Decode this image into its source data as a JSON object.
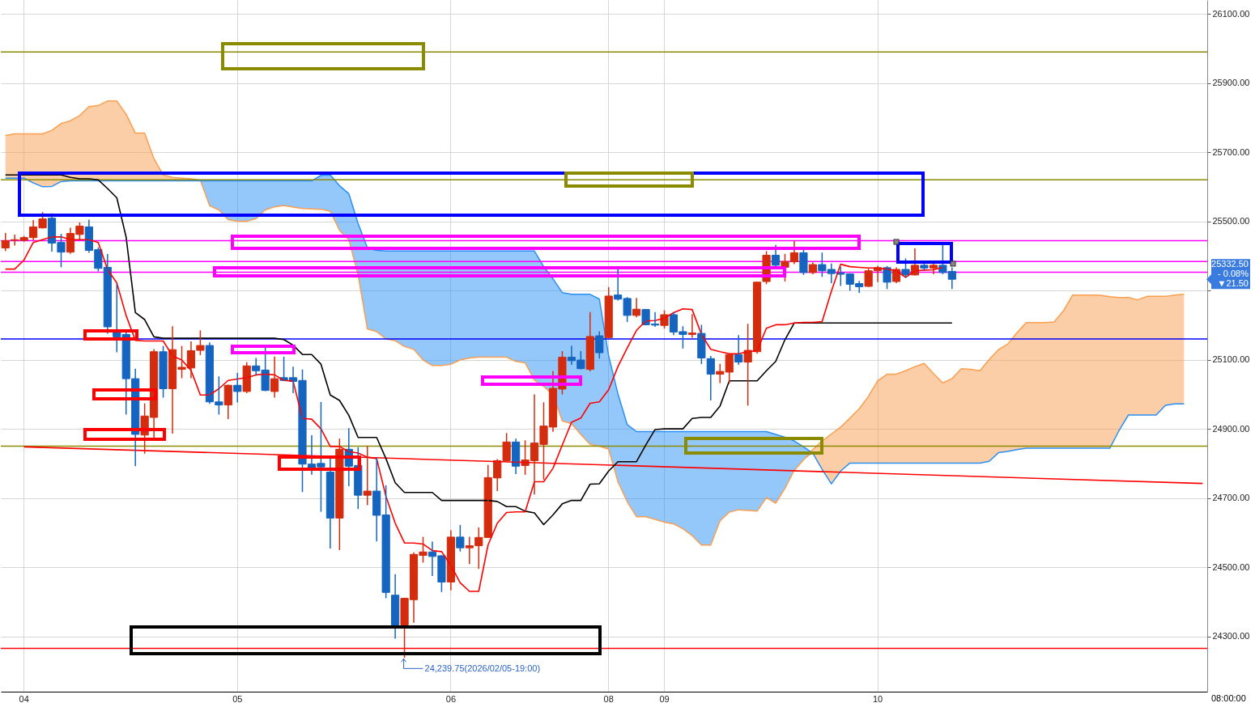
{
  "chart_data": {
    "type": "candlestick",
    "categories": [
      null,
      null,
      "04",
      null,
      null,
      null,
      null,
      null,
      null,
      null,
      null,
      null,
      null,
      null,
      null,
      null,
      null,
      null,
      null,
      null,
      null,
      null,
      null,
      null,
      null,
      "05",
      null,
      null,
      null,
      null,
      null,
      null,
      null,
      null,
      null,
      null,
      null,
      null,
      null,
      null,
      null,
      null,
      null,
      null,
      null,
      null,
      null,
      null,
      "06",
      null,
      null,
      null,
      null,
      null,
      null,
      null,
      null,
      null,
      null,
      null,
      null,
      null,
      null,
      null,
      null,
      "08",
      null,
      null,
      null,
      null,
      null,
      "09",
      null,
      null,
      null,
      null,
      null,
      null,
      null,
      null,
      null,
      null,
      null,
      null,
      null,
      null,
      null,
      null,
      null,
      null,
      null,
      null,
      null,
      null,
      "10",
      null,
      null,
      null,
      null,
      null,
      null,
      null,
      null,
      null,
      null,
      null,
      null,
      null,
      null,
      null,
      null,
      null,
      null,
      null,
      null,
      null,
      null,
      null,
      null,
      null,
      null,
      null,
      null,
      null,
      null,
      null,
      null,
      null,
      null,
      null
    ],
    "ohlc": [
      [
        25423,
        25465,
        25416,
        25444
      ],
      [
        25445,
        25460,
        25432,
        25447
      ],
      [
        25445,
        25456,
        25443,
        25453
      ],
      [
        25453,
        25502,
        25447,
        25484
      ],
      [
        25481,
        25525,
        25481,
        25507
      ],
      [
        25509,
        25521,
        25414,
        25437
      ],
      [
        25439,
        25462,
        25369,
        25411
      ],
      [
        25411,
        25480,
        25408,
        25465
      ],
      [
        25462,
        25495,
        25448,
        25486
      ],
      [
        25484,
        25503,
        25411,
        25416
      ],
      [
        25418,
        25423,
        25357,
        25364
      ],
      [
        25367,
        25404,
        25177,
        25195
      ],
      [
        25181,
        25318,
        25123,
        25166
      ],
      [
        25173,
        25177,
        24943,
        25045
      ],
      [
        25045,
        25072,
        24794,
        24884
      ],
      [
        24882,
        24972,
        24830,
        24937
      ],
      [
        24933,
        25129,
        24876,
        25123
      ],
      [
        25123,
        25138,
        24992,
        25016
      ],
      [
        25016,
        25195,
        24888,
        25129
      ],
      [
        25072,
        25138,
        25048,
        25078
      ],
      [
        25076,
        25151,
        25048,
        25126
      ],
      [
        25127,
        25183,
        25115,
        25141
      ],
      [
        25141,
        25148,
        24974,
        24978
      ],
      [
        24978,
        25050,
        24943,
        24969
      ],
      [
        24969,
        25026,
        24930,
        25026
      ],
      [
        25026,
        25060,
        24978,
        25008
      ],
      [
        25008,
        25091,
        25005,
        25082
      ],
      [
        25082,
        25103,
        25056,
        25068
      ],
      [
        25070,
        25136,
        25011,
        25011
      ],
      [
        25008,
        25107,
        24992,
        25045
      ],
      [
        25048,
        25107,
        25040,
        25040
      ],
      [
        25048,
        25078,
        25005,
        25037
      ],
      [
        25040,
        25070,
        24719,
        24798
      ],
      [
        24798,
        24880,
        24769,
        24784
      ],
      [
        24800,
        24976,
        24662,
        24790
      ],
      [
        24775,
        24814,
        24556,
        24642
      ],
      [
        24642,
        24870,
        24551,
        24841
      ],
      [
        24841,
        24900,
        24736,
        24792
      ],
      [
        24794,
        24845,
        24670,
        24708
      ],
      [
        24708,
        24849,
        24681,
        24720
      ],
      [
        24720,
        24814,
        24576,
        24650
      ],
      [
        24651,
        24735,
        24412,
        24427
      ],
      [
        24419,
        24478,
        24295,
        24333
      ],
      [
        24333,
        24410,
        24239.75,
        24410
      ],
      [
        24406,
        24541,
        24341,
        24537
      ],
      [
        24534,
        24586,
        24515,
        24544
      ],
      [
        24544,
        24572,
        24476,
        24531
      ],
      [
        24533,
        24533,
        24430,
        24457
      ],
      [
        24457,
        24605,
        24435,
        24587
      ],
      [
        24587,
        24620,
        24547,
        24556
      ],
      [
        24556,
        24586,
        24511,
        24562
      ],
      [
        24562,
        24613,
        24497,
        24586
      ],
      [
        24586,
        24794,
        24586,
        24759
      ],
      [
        24758,
        24811,
        24722,
        24808
      ],
      [
        24808,
        24886,
        24808,
        24862
      ],
      [
        24862,
        24870,
        24771,
        24792
      ],
      [
        24794,
        24865,
        24769,
        24810
      ],
      [
        24808,
        24998,
        24712,
        24859
      ],
      [
        24855,
        24975,
        24755,
        24908
      ],
      [
        24905,
        25066,
        24893,
        25017
      ],
      [
        25015,
        25123,
        25001,
        25107
      ],
      [
        25107,
        25138,
        25087,
        25097
      ],
      [
        25099,
        25123,
        25074,
        25074
      ],
      [
        25072,
        25236,
        25068,
        25167
      ],
      [
        25169,
        25180,
        25105,
        25120
      ],
      [
        25164,
        25308,
        25164,
        25284
      ],
      [
        25287,
        25361,
        25273,
        25275
      ],
      [
        25277,
        25279,
        25211,
        25228
      ],
      [
        25228,
        25277,
        25224,
        25246
      ],
      [
        25245,
        25245,
        25201,
        25201
      ],
      [
        25203,
        25236,
        25197,
        25200
      ],
      [
        25199,
        25241,
        25192,
        25230
      ],
      [
        25230,
        25236,
        25173,
        25180
      ],
      [
        25181,
        25195,
        25134,
        25173
      ],
      [
        25173,
        25230,
        25165,
        25177
      ],
      [
        25176,
        25199,
        25089,
        25105
      ],
      [
        25103,
        25109,
        24984,
        25058
      ],
      [
        25058,
        25086,
        25034,
        25066
      ],
      [
        25064,
        25115,
        25033,
        25115
      ],
      [
        25115,
        25169,
        25087,
        25093
      ],
      [
        25093,
        25202,
        24969,
        25127
      ],
      [
        25123,
        25324,
        25119,
        25324
      ],
      [
        25326,
        25412,
        25320,
        25402
      ],
      [
        25402,
        25430,
        25369,
        25373
      ],
      [
        25367,
        25404,
        25328,
        25384
      ],
      [
        25383,
        25442,
        25378,
        25409
      ],
      [
        25409,
        25425,
        25347,
        25352
      ],
      [
        25352,
        25380,
        25349,
        25375
      ],
      [
        25375,
        25408,
        25341,
        25357
      ],
      [
        25361,
        25376,
        25323,
        25349
      ],
      [
        25351,
        25367,
        25315,
        25347
      ],
      [
        25348,
        25348,
        25301,
        25318
      ],
      [
        25320,
        25326,
        25295,
        25311
      ],
      [
        25312,
        25361,
        25312,
        25357
      ],
      [
        25357,
        25370,
        25326,
        25366
      ],
      [
        25366,
        25369,
        25306,
        25324
      ],
      [
        25326,
        25365,
        25323,
        25361
      ],
      [
        25361,
        25391,
        25339,
        25345
      ],
      [
        25345,
        25420,
        25345,
        25373
      ],
      [
        25373,
        25380,
        25359,
        25365
      ],
      [
        25365,
        25380,
        25349,
        25373
      ],
      [
        25373,
        25433,
        25349,
        25352
      ],
      [
        25355,
        25365,
        25306,
        25332.5
      ],
      null,
      null,
      null,
      null,
      null,
      null,
      null,
      null,
      null,
      null,
      null,
      null,
      null,
      null,
      null,
      null,
      null,
      null,
      null,
      null,
      null,
      null,
      null,
      null,
      null,
      null,
      null
    ],
    "series": [
      {
        "type": "area",
        "color": "#fa9e4f",
        "values": [
          25748,
          25753,
          25753,
          25753,
          25753,
          25763,
          25783,
          25791,
          25806,
          25832,
          25835,
          25848,
          25848,
          25810,
          25755,
          25755,
          25681,
          25634,
          25627,
          25625,
          25623,
          25619,
          25545,
          25533,
          25505,
          25500,
          25500,
          25508,
          25533,
          25542,
          25546,
          25541,
          25537,
          25536,
          25535,
          25529,
          25474,
          25447,
          25345,
          25189,
          25181,
          25160,
          25155,
          25138,
          25130,
          25099,
          25083,
          25083,
          25087,
          25099,
          25105,
          25107,
          25107,
          25107,
          25107,
          25095,
          25091,
          25041,
          25023,
          24998,
          24923,
          24915,
          24884,
          24855,
          24850,
          24841,
          24747,
          24689,
          24646,
          24646,
          24638,
          24630,
          24625,
          24611,
          24591,
          24564,
          24564,
          24634,
          24659,
          24666,
          24664,
          24662,
          24701,
          24685,
          24728,
          24780,
          24810,
          24840,
          24865,
          24885,
          24905,
          24931,
          24958,
          24994,
          25039,
          25058,
          25058,
          25068,
          25080,
          25089,
          25060,
          25033,
          25045,
          25074,
          25072,
          25068,
          25100,
          25129,
          25145,
          25178,
          25207,
          25207,
          25207,
          25209,
          25241,
          25287,
          25287,
          25287,
          25286,
          25282,
          25280,
          25280,
          25273,
          25283,
          25283,
          25283,
          25287,
          25289,
          null,
          null
        ]
      },
      {
        "type": "area",
        "color": "#2a8ff5",
        "values": [
          25625,
          25625,
          25625,
          25611,
          25600,
          25601,
          25615,
          25617,
          25617,
          25617,
          25617,
          25617,
          25617,
          25617,
          25617,
          25617,
          25617,
          25617,
          25617,
          25617,
          25617,
          25617,
          25617,
          25617,
          25617,
          25617,
          25617,
          25617,
          25617,
          25617,
          25617,
          25617,
          25617,
          25617,
          25633,
          25634,
          25603,
          25580,
          25494,
          25423,
          25416,
          25414,
          25414,
          25414,
          25414,
          25414,
          25414,
          25414,
          25414,
          25414,
          25414,
          25414,
          25414,
          25414,
          25414,
          25414,
          25414,
          25414,
          25369,
          25334,
          25294,
          25289,
          25289,
          25289,
          25275,
          25111,
          25001,
          24912,
          24892,
          24892,
          24892,
          24892,
          24892,
          24892,
          24892,
          24892,
          24892,
          24892,
          24892,
          24892,
          24892,
          24892,
          24892,
          24884,
          24876,
          24865,
          24848,
          24830,
          24783,
          24741,
          24778,
          24801,
          24801,
          24801,
          24801,
          24801,
          24801,
          24801,
          24801,
          24801,
          24801,
          24801,
          24801,
          24801,
          24801,
          24801,
          24806,
          24831,
          24835,
          24840,
          24844,
          24844,
          24844,
          24844,
          24844,
          24844,
          24844,
          24844,
          24844,
          24844,
          24895,
          24940,
          24940,
          24940,
          24940,
          24968,
          24972,
          24972,
          null,
          null
        ]
      },
      {
        "type": "line",
        "color": "#ff0000",
        "values": [
          null,
          null,
          24848,
          null,
          null,
          null,
          null,
          null,
          null,
          null,
          null,
          null,
          null,
          null,
          null,
          null,
          null,
          null,
          null,
          null,
          null,
          null,
          null,
          null,
          null,
          null,
          null,
          null,
          null,
          null,
          null,
          null,
          null,
          null,
          null,
          null,
          null,
          null,
          null,
          null,
          null,
          null,
          null,
          null,
          null,
          null,
          null,
          null,
          null,
          null,
          null,
          null,
          null,
          null,
          null,
          null,
          null,
          null,
          null,
          null,
          null,
          null,
          null,
          null,
          null,
          null,
          null,
          null,
          null,
          null,
          null,
          null,
          null,
          null,
          null,
          null,
          null,
          null,
          null,
          null,
          null,
          null,
          null,
          null,
          null,
          null,
          null,
          null,
          null,
          null,
          null,
          null,
          null,
          null,
          null,
          null,
          null,
          null,
          null,
          null,
          null,
          null,
          null,
          null,
          null,
          null,
          null,
          null,
          null,
          null,
          null,
          null,
          null,
          null,
          null,
          null,
          null,
          null,
          null,
          null,
          null,
          null,
          null,
          null,
          null,
          null,
          null,
          null,
          null,
          24742
        ]
      },
      {
        "type": "line",
        "color": "#000000",
        "values": [
          25634,
          25634,
          25634,
          25634,
          25634,
          25634,
          25634,
          25627,
          25623,
          25623,
          25620,
          25595,
          25568,
          25455,
          25236,
          25216,
          25166,
          25162,
          25162,
          25162,
          25162,
          25162,
          25162,
          25162,
          25162,
          25162,
          25162,
          25162,
          25162,
          25162,
          25158,
          25142,
          25115,
          25115,
          25087,
          24998,
          24982,
          24939,
          24875,
          24875,
          24875,
          24814,
          24744,
          24716,
          24716,
          24716,
          24716,
          24693,
          24693,
          24693,
          24693,
          24693,
          24693,
          24690,
          24675,
          24675,
          24662,
          24657,
          24623,
          24651,
          24683,
          24693,
          24693,
          24740,
          24741,
          24778,
          24805,
          24805,
          24805,
          24853,
          24898,
          24900,
          24900,
          24900,
          24930,
          24933,
          24933,
          24966,
          25039,
          25039,
          25039,
          25039,
          25068,
          25095,
          25158,
          25206,
          25206,
          25206,
          25206,
          25206,
          25206,
          25206,
          25206,
          25206,
          25206,
          25206,
          25206,
          25206,
          25206,
          25206,
          25206,
          25206,
          25206,
          null,
          null,
          null,
          null,
          null,
          null,
          null,
          null,
          null,
          null,
          null,
          null,
          null,
          null,
          null,
          null,
          null,
          null,
          null,
          null,
          null,
          null,
          null,
          null,
          null,
          null,
          null
        ]
      },
      {
        "type": "line",
        "color": "#ff0000",
        "values": [
          25362,
          25362,
          25388,
          25439,
          25447,
          25455,
          25455,
          25447,
          25447,
          25447,
          25439,
          25361,
          25322,
          25228,
          25156,
          25154,
          25154,
          25154,
          25111,
          25099,
          25069,
          24998,
          24998,
          25016,
          25040,
          25044,
          25048,
          25056,
          25058,
          25056,
          25040,
          25038,
          24930,
          24928,
          24900,
          24849,
          24849,
          24834,
          24830,
          24818,
          24814,
          24705,
          24627,
          24570,
          24570,
          24567,
          24548,
          24545,
          24505,
          24455,
          24430,
          24430,
          24564,
          24627,
          24658,
          24660,
          24660,
          24747,
          24747,
          24786,
          24853,
          24919,
          24931,
          24974,
          24978,
          25013,
          25080,
          25134,
          25185,
          25212,
          25213,
          25220,
          25236,
          25247,
          25245,
          25173,
          25130,
          25123,
          25117,
          25117,
          25123,
          25126,
          25191,
          25201,
          25201,
          25206,
          25208,
          25208,
          25210,
          25298,
          25376,
          25369,
          25367,
          25365,
          25365,
          25362,
          25357,
          25338,
          25357,
          25359,
          25360,
          25367,
          null,
          null,
          null,
          null,
          null,
          null,
          null,
          null,
          null,
          null,
          null,
          null,
          null,
          null,
          null,
          null,
          null,
          null,
          null,
          null,
          null,
          null,
          null,
          null,
          null,
          null,
          null,
          null
        ]
      }
    ],
    "ref_lines": [
      {
        "axis": "y",
        "value": 25990,
        "color": "#8b8b00"
      },
      {
        "axis": "y",
        "value": 25620,
        "color": "#8b8b00"
      },
      {
        "axis": "y",
        "value": 24850,
        "color": "#8b8b00"
      },
      {
        "axis": "y",
        "value": 25444,
        "color": "#ff00ff"
      },
      {
        "axis": "y",
        "value": 25384,
        "color": "#ff00ff"
      },
      {
        "axis": "y",
        "value": 25353,
        "color": "#ff00ff"
      },
      {
        "axis": "y",
        "value": 25160,
        "color": "#0000ff"
      },
      {
        "axis": "y",
        "value": 24265,
        "color": "#ff0000"
      }
    ],
    "ylim": [
      24140,
      26140
    ],
    "yticks": [
      {
        "value": 24300,
        "label": "24300.00"
      },
      {
        "value": 24500,
        "label": "24500.00"
      },
      {
        "value": 24700,
        "label": "24700.00"
      },
      {
        "value": 24900,
        "label": "24900.00"
      },
      {
        "value": 25100,
        "label": "25100.00"
      },
      {
        "value": 25300,
        "label": null
      },
      {
        "value": 25500,
        "label": "25500.00"
      },
      {
        "value": 25700,
        "label": "25700.00"
      },
      {
        "value": 25900,
        "label": "25900.00"
      },
      {
        "value": 26100,
        "label": "26100.00"
      }
    ],
    "grid": true,
    "annotations": [
      "24,239.75(2026/02/05-19:00)",
      "25332.50",
      "- 0.08%",
      "▼21.50",
      "08:00:00"
    ]
  }
}
